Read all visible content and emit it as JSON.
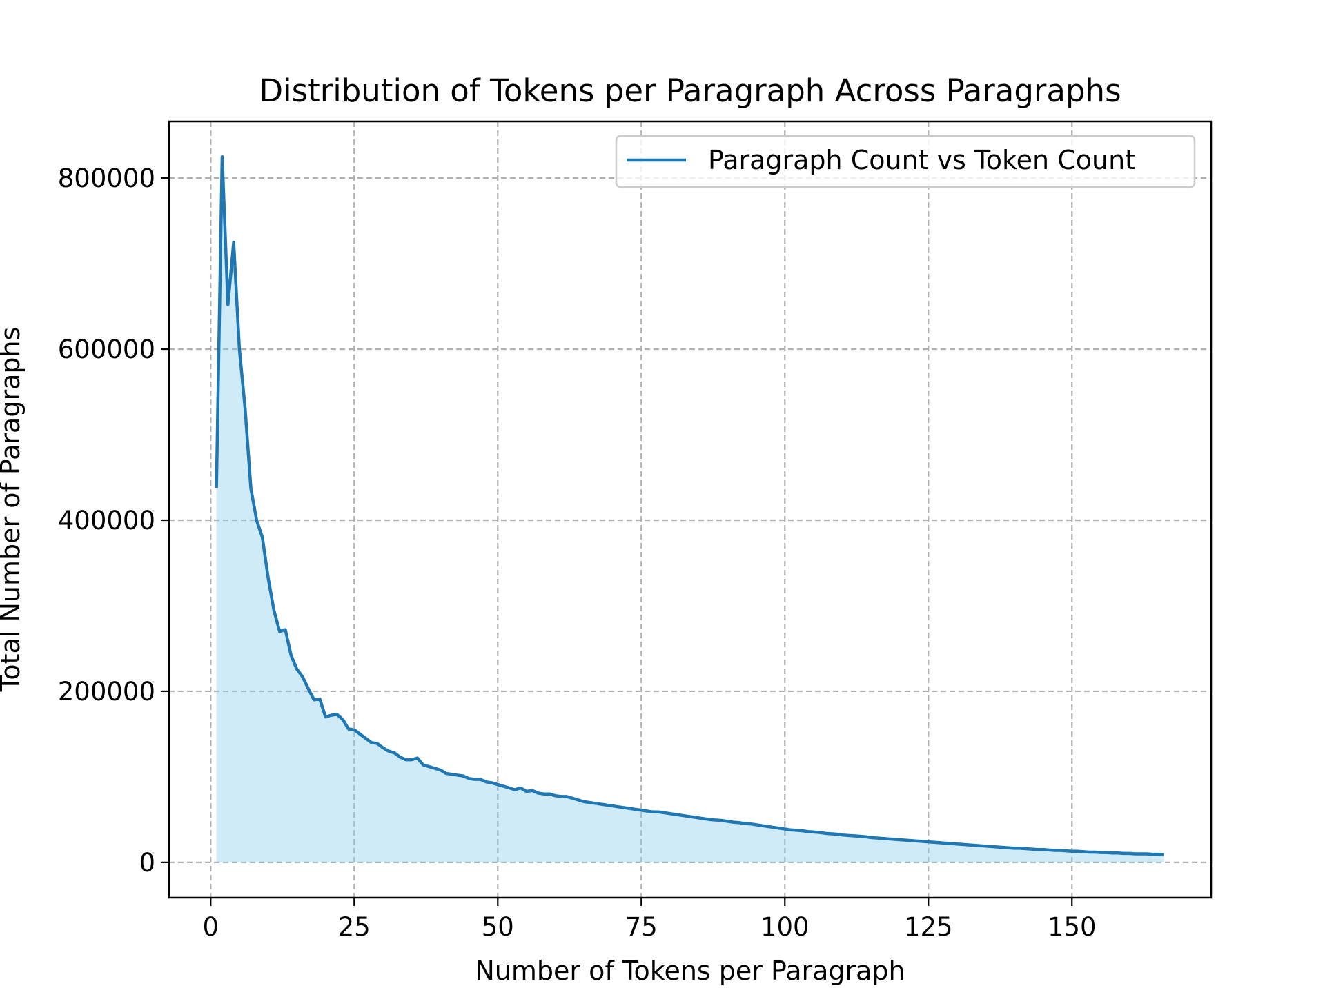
{
  "chart_data": {
    "type": "area",
    "title": "Distribution of Tokens per Paragraph Across Paragraphs",
    "xlabel": "Number of Tokens per Paragraph",
    "ylabel": "Total Number of Paragraphs",
    "xlim": [
      -7.25,
      174.25
    ],
    "ylim": [
      -41250,
      866250
    ],
    "xticks": [
      0,
      25,
      50,
      75,
      100,
      125,
      150
    ],
    "yticks": [
      0,
      200000,
      400000,
      600000,
      800000
    ],
    "grid": true,
    "legend": {
      "position": "upper right",
      "entries": [
        "Paragraph Count vs Token Count"
      ]
    },
    "colors": {
      "line": "#1f77b4",
      "fill": "#87ceeb"
    },
    "series": [
      {
        "name": "Paragraph Count vs Token Count",
        "x": [
          1,
          2,
          3,
          4,
          5,
          6,
          7,
          8,
          9,
          10,
          11,
          12,
          13,
          14,
          15,
          16,
          17,
          18,
          19,
          20,
          21,
          22,
          23,
          24,
          25,
          26,
          27,
          28,
          29,
          30,
          31,
          32,
          33,
          34,
          35,
          36,
          37,
          38,
          39,
          40,
          41,
          42,
          43,
          44,
          45,
          46,
          47,
          48,
          49,
          50,
          51,
          52,
          53,
          54,
          55,
          56,
          57,
          58,
          59,
          60,
          61,
          62,
          63,
          64,
          65,
          66,
          67,
          68,
          69,
          70,
          71,
          72,
          73,
          74,
          75,
          76,
          77,
          78,
          79,
          80,
          81,
          82,
          83,
          84,
          85,
          86,
          87,
          88,
          89,
          90,
          91,
          92,
          93,
          94,
          95,
          96,
          97,
          98,
          99,
          100,
          101,
          102,
          103,
          104,
          105,
          106,
          107,
          108,
          109,
          110,
          111,
          112,
          113,
          114,
          115,
          116,
          117,
          118,
          119,
          120,
          121,
          122,
          123,
          124,
          125,
          126,
          127,
          128,
          129,
          130,
          131,
          132,
          133,
          134,
          135,
          136,
          137,
          138,
          139,
          140,
          141,
          142,
          143,
          144,
          145,
          146,
          147,
          148,
          149,
          150,
          151,
          152,
          153,
          154,
          155,
          156,
          157,
          158,
          159,
          160,
          161,
          162,
          163,
          164,
          165,
          166
        ],
        "values": [
          438000,
          825000,
          652000,
          725000,
          600000,
          530000,
          437000,
          400000,
          380000,
          333000,
          295000,
          270000,
          272000,
          242000,
          226000,
          217000,
          203000,
          190000,
          191000,
          170000,
          172000,
          173000,
          167000,
          156000,
          155000,
          150000,
          145000,
          140000,
          139000,
          134000,
          130000,
          128000,
          123000,
          120000,
          120000,
          122000,
          114000,
          112000,
          110000,
          108000,
          104000,
          103000,
          102000,
          101000,
          98000,
          97000,
          97000,
          94000,
          93000,
          91000,
          89000,
          87000,
          85000,
          87000,
          83000,
          84000,
          81000,
          80000,
          80000,
          78000,
          77000,
          77000,
          75000,
          73000,
          71000,
          70000,
          69000,
          68000,
          67000,
          66000,
          65000,
          64000,
          63000,
          62000,
          61000,
          60000,
          59000,
          59000,
          58000,
          57000,
          56000,
          55000,
          54000,
          53000,
          52000,
          51000,
          50000,
          49500,
          49000,
          48000,
          47000,
          46500,
          45500,
          45000,
          44000,
          43000,
          42000,
          41000,
          40000,
          39000,
          38000,
          37500,
          37000,
          36000,
          35500,
          35000,
          34000,
          33500,
          33000,
          32000,
          31500,
          31000,
          30500,
          30000,
          29000,
          28500,
          28000,
          27500,
          27000,
          26500,
          26000,
          25500,
          25000,
          24500,
          24000,
          23500,
          23000,
          22500,
          22000,
          21500,
          21000,
          20500,
          20000,
          19500,
          19000,
          18500,
          18000,
          17500,
          17000,
          16500,
          16500,
          16000,
          15500,
          15000,
          15000,
          14500,
          14000,
          14000,
          13500,
          13000,
          13000,
          12500,
          12000,
          12000,
          11500,
          11500,
          11000,
          11000,
          10500,
          10500,
          10000,
          10000,
          10000,
          9500,
          9500,
          9000
        ]
      }
    ]
  }
}
